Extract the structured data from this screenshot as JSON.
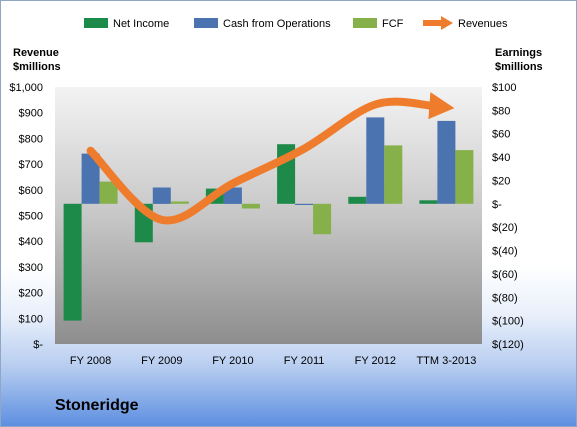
{
  "company": "Stoneridge",
  "chart_data": {
    "type": "bar",
    "categories": [
      "FY 2008",
      "FY 2009",
      "FY 2010",
      "FY 2011",
      "FY 2012",
      "TTM 3-2013"
    ],
    "left_axis": {
      "title_lines": [
        "Revenue",
        "$millions"
      ],
      "ylim": [
        0,
        1000
      ],
      "ticks": [
        0,
        100,
        200,
        300,
        400,
        500,
        600,
        700,
        800,
        900,
        1000
      ],
      "tick_labels": [
        "$-",
        "$100",
        "$200",
        "$300",
        "$400",
        "$500",
        "$600",
        "$700",
        "$800",
        "$900",
        "$1,000"
      ]
    },
    "right_axis": {
      "title_lines": [
        "Earnings",
        "$millions"
      ],
      "ylim": [
        -120,
        100
      ],
      "ticks": [
        -120,
        -100,
        -80,
        -60,
        -40,
        -20,
        0,
        20,
        40,
        60,
        80,
        100
      ],
      "tick_labels": [
        "$(120)",
        "$(100)",
        "$(80)",
        "$(60)",
        "$(40)",
        "$(20)",
        "$-",
        "$20",
        "$40",
        "$60",
        "$80",
        "$100"
      ]
    },
    "series": [
      {
        "name": "Net Income",
        "axis": "right",
        "type": "bar",
        "color": "#1e8a4a",
        "values": [
          -100,
          -33,
          13,
          51,
          6,
          3
        ]
      },
      {
        "name": "Cash from Operations",
        "axis": "right",
        "type": "bar",
        "color": "#4a73b0",
        "values": [
          43,
          14,
          14,
          -1,
          74,
          71
        ]
      },
      {
        "name": "FCF",
        "axis": "right",
        "type": "bar",
        "color": "#86b04a",
        "values": [
          19,
          2,
          -4,
          -26,
          50,
          46
        ]
      },
      {
        "name": "Revenues",
        "axis": "left",
        "type": "line",
        "color": "#ef7c2c",
        "values": [
          752,
          483,
          625,
          760,
          932,
          910
        ]
      }
    ],
    "legend_position": "top",
    "grid": false
  }
}
